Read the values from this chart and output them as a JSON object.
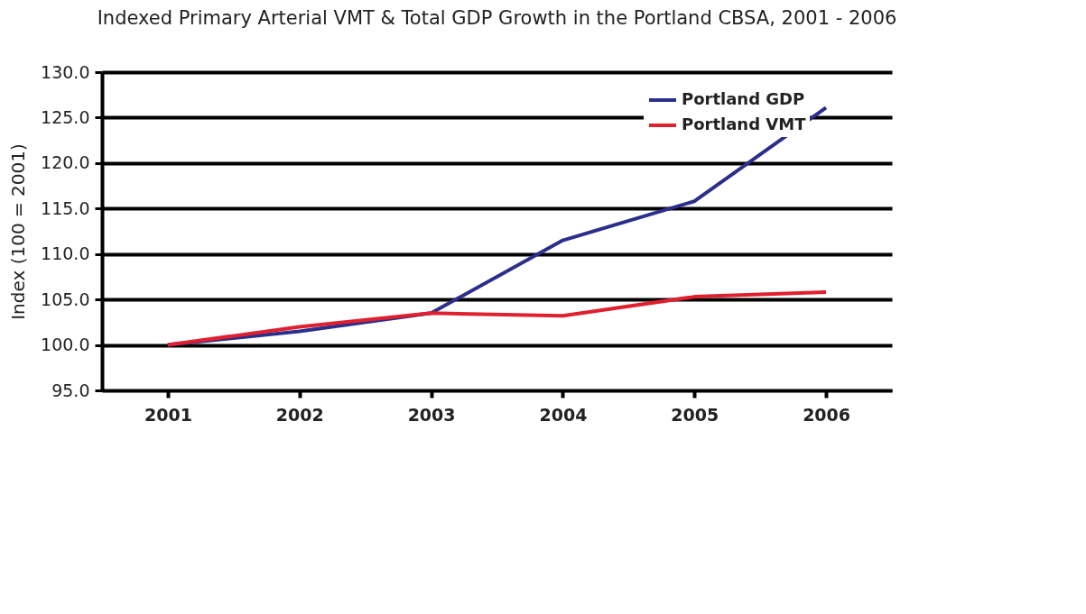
{
  "chart_data": {
    "type": "line",
    "title": "Indexed Primary Arterial VMT & Total GDP Growth in the Portland CBSA, 2001 - 2006",
    "ylabel": "Index (100 = 2001)",
    "categories": [
      "2001",
      "2002",
      "2003",
      "2004",
      "2005",
      "2006"
    ],
    "series": [
      {
        "name": "Portland GDP",
        "color": "#2b2f8c",
        "values": [
          100,
          101.5,
          103.5,
          111.5,
          115.8,
          126.1
        ]
      },
      {
        "name": "Portland VMT",
        "color": "#e0202e",
        "values": [
          100,
          102,
          103.5,
          103.2,
          105.3,
          105.8
        ]
      }
    ],
    "ylim": [
      95,
      130
    ],
    "yticks": [
      {
        "value": 95,
        "label": "95.0"
      },
      {
        "value": 100,
        "label": "100.0"
      },
      {
        "value": 105,
        "label": "105.0"
      },
      {
        "value": 110,
        "label": "110.0"
      },
      {
        "value": 115,
        "label": "115.0"
      },
      {
        "value": 120,
        "label": "120.0"
      },
      {
        "value": 125,
        "label": "125.0"
      },
      {
        "value": 130,
        "label": "130.0"
      }
    ],
    "grid": "y",
    "legend": "top right",
    "marker": "none",
    "line_style": "solid"
  }
}
